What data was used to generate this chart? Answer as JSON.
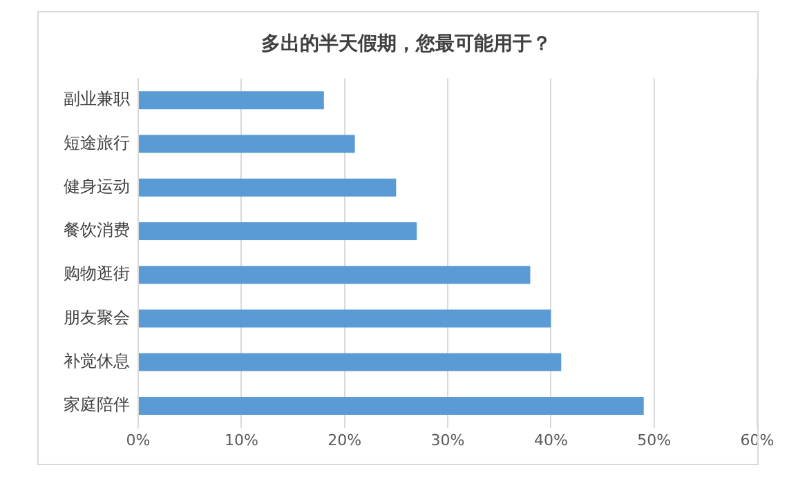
{
  "chart_data": {
    "type": "bar",
    "orientation": "horizontal",
    "title": "多出的半天假期，您最可能用于？",
    "categories": [
      "副业兼职",
      "短途旅行",
      "健身运动",
      "餐饮消费",
      "购物逛街",
      "朋友聚会",
      "补觉休息",
      "家庭陪伴"
    ],
    "values": [
      18,
      21,
      25,
      27,
      38,
      40,
      41,
      49
    ],
    "color": "#5b9bd5",
    "xlim": [
      0,
      60
    ],
    "xticks": [
      {
        "value": 0,
        "label": "0%"
      },
      {
        "value": 10,
        "label": "10%"
      },
      {
        "value": 20,
        "label": "20%"
      },
      {
        "value": 30,
        "label": "30%"
      },
      {
        "value": 40,
        "label": "40%"
      },
      {
        "value": 50,
        "label": "50%"
      },
      {
        "value": 60,
        "label": "60%"
      }
    ],
    "grid": "x",
    "legend": false
  }
}
